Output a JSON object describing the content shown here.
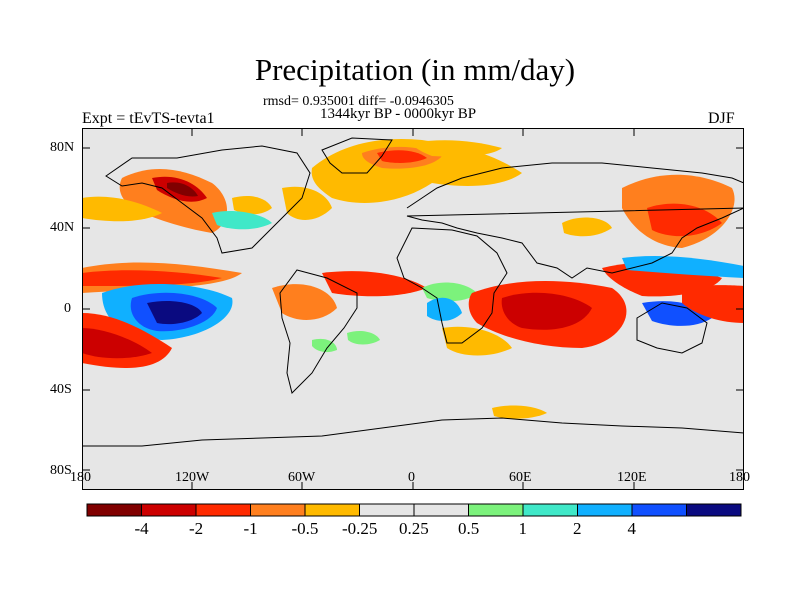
{
  "header": {
    "title": "Precipitation (in mm/day)",
    "stats": "rmsd= 0.935001 diff= -0.0946305",
    "period": "1344kyr BP - 0000kyr BP",
    "experiment": "Expt = tEvTS-tevta1",
    "season": "DJF"
  },
  "axes": {
    "lat_labels": [
      "80N",
      "40N",
      "0",
      "40S",
      "80S"
    ],
    "lon_labels": [
      "180",
      "120W",
      "60W",
      "0",
      "60E",
      "120E",
      "180"
    ]
  },
  "legend": {
    "colors": [
      "#800000",
      "#cc0000",
      "#ff2a00",
      "#ff7f1e",
      "#ffba00",
      "#e6e6e6",
      "#e6e6e6",
      "#7cf27c",
      "#40e8c8",
      "#10b0ff",
      "#1050ff",
      "#0a0a80"
    ],
    "labels": [
      "-4",
      "-2",
      "-1",
      "-0.5",
      "-0.25",
      "0.25",
      "0.5",
      "1",
      "2",
      "4"
    ]
  },
  "colors": {
    "background": "#e6e6e6",
    "coast": "#000000"
  }
}
